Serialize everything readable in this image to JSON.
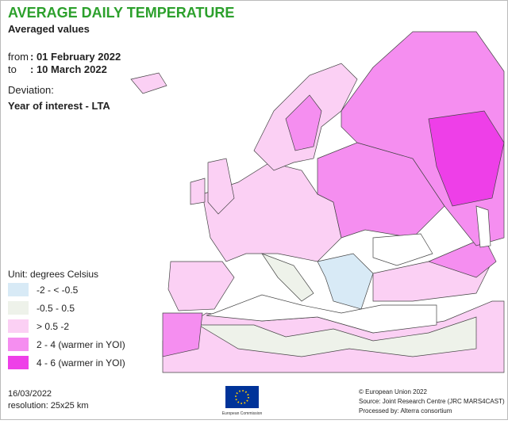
{
  "header": {
    "title": "AVERAGE DAILY TEMPERATURE",
    "subtitle": "Averaged values",
    "from_label": "from",
    "from_value": ": 01 February 2022",
    "to_label": "to",
    "to_value": ": 10 March 2022",
    "deviation": "Deviation:",
    "comparison": "Year of interest - LTA"
  },
  "legend": {
    "unit": "Unit: degrees Celsius",
    "items": [
      {
        "label": "-2 - < -0.5",
        "color": "#d8eaf6"
      },
      {
        "label": "-0.5 - 0.5",
        "color": "#eef2ea"
      },
      {
        "label": "> 0.5 -2",
        "color": "#fbd0f4"
      },
      {
        "label": "2 - 4 (warmer in YOI)",
        "color": "#f58ef0"
      },
      {
        "label": "4 - 6 (warmer in YOI)",
        "color": "#ee3fe8"
      }
    ]
  },
  "footer": {
    "date": "16/03/2022",
    "resolution": "resolution: 25x25 km",
    "logo_text": "European Commission",
    "copyright": "© European Union 2022",
    "source": "Source: Joint Research Centre (JRC MARS4CAST)",
    "processed": "Processed by: Alterra consortium"
  }
}
